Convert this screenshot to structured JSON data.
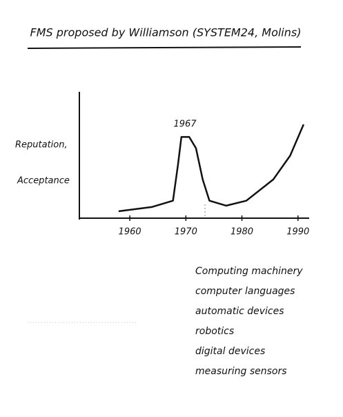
{
  "chart_data": {
    "type": "line",
    "title": "FMS proposed by Williamson (SYSTEM24, Molins)",
    "ylabel": [
      "Reputation,",
      "Acceptance"
    ],
    "annotation": "1967",
    "x": [
      1958,
      1964,
      1967.7,
      1968.6,
      1969.2,
      1970.6,
      1971.8,
      1973,
      1974.2,
      1977.2,
      1980.8,
      1985.6,
      1988.6,
      1991
    ],
    "series": [
      {
        "color": "#111111",
        "values": [
          5.5,
          9,
          14,
          43,
          65,
          65,
          56,
          31,
          14,
          10,
          14,
          31,
          50,
          75
        ]
      }
    ],
    "xlim": [
      1951,
      1992
    ],
    "xticks": [
      1960,
      1970,
      1980,
      1990
    ],
    "ylim": [
      0,
      100
    ],
    "notes": [
      "Computing machinery",
      "computer languages",
      "automatic devices",
      "robotics",
      "digital devices",
      "measuring sensors"
    ]
  }
}
